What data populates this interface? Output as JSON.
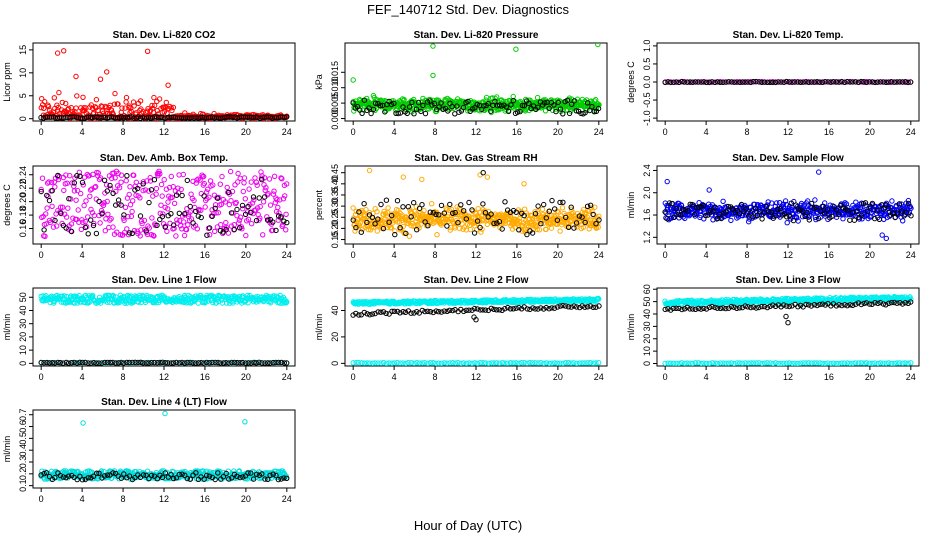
{
  "figure": {
    "title": "FEF_140712  Std. Dev. Diagnostics",
    "xlabel": "Hour of Day (UTC)"
  },
  "chart_data": [
    {
      "type": "scatter",
      "title": "Stan. Dev. Li-820 CO2",
      "ylabel": "Licor ppm",
      "xlim": [
        -0.8,
        24.8
      ],
      "ylim": [
        -0.5,
        16.5
      ],
      "xticks": [
        "0",
        "4",
        "8",
        "12",
        "16",
        "20",
        "24"
      ],
      "yticks": [
        "0",
        "5",
        "10",
        "15"
      ],
      "series": [
        {
          "color": "#ff0000",
          "kind": "co2",
          "n": 360,
          "outliers": [
            [
              2.2,
              14.8
            ],
            [
              1.6,
              14.3
            ],
            [
              10.4,
              14.7
            ],
            [
              6.4,
              10.2
            ],
            [
              3.4,
              9.2
            ],
            [
              5.8,
              8.6
            ],
            [
              12.4,
              7.3
            ]
          ]
        },
        {
          "color": "#000000",
          "kind": "zero",
          "n": 120
        }
      ]
    },
    {
      "type": "scatter",
      "title": "Stan. Dev. Li-820 Pressure",
      "ylabel": "kPa",
      "xlim": [
        -0.8,
        24.8
      ],
      "ylim": [
        -0.0008,
        0.0245
      ],
      "xticks": [
        "0",
        "4",
        "8",
        "12",
        "16",
        "20",
        "24"
      ],
      "yticks": [
        "0.000",
        "0.005",
        "0.010",
        "0.015"
      ],
      "series": [
        {
          "color": "#00cc00",
          "kind": "pres",
          "n": 520,
          "outliers": [
            [
              7.8,
              0.0235
            ],
            [
              15.9,
              0.0225
            ],
            [
              23.9,
              0.024
            ],
            [
              7.8,
              0.014
            ],
            [
              0,
              0.0125
            ]
          ]
        },
        {
          "color": "#000000",
          "kind": "presb",
          "n": 110
        }
      ]
    },
    {
      "type": "scatter",
      "title": "Stan. Dev. Li-820 Temp.",
      "ylabel": "degrees C",
      "xlim": [
        -0.8,
        24.8
      ],
      "ylim": [
        -1.08,
        1.08
      ],
      "xticks": [
        "0",
        "4",
        "8",
        "12",
        "16",
        "20",
        "24"
      ],
      "yticks": [
        "-1.0",
        "-0.5",
        "0.0",
        "0.5",
        "1.0"
      ],
      "series": [
        {
          "color": "#dd00dd",
          "kind": "flat",
          "n": 90,
          "level": 0.0
        },
        {
          "color": "#000000",
          "kind": "flat",
          "n": 90,
          "level": 0.0
        }
      ]
    },
    {
      "type": "scatter",
      "title": "Stan. Dev. Amb. Box Temp.",
      "ylabel": "degrees C",
      "xlim": [
        -0.8,
        24.8
      ],
      "ylim": [
        0.137,
        0.253
      ],
      "xticks": [
        "0",
        "4",
        "8",
        "12",
        "16",
        "20",
        "24"
      ],
      "yticks": [
        "0.16",
        "0.18",
        "0.20",
        "0.22",
        "0.24"
      ],
      "series": [
        {
          "color": "#ee00ee",
          "kind": "spread",
          "n": 380,
          "lo": 0.148,
          "hi": 0.246
        },
        {
          "color": "#000000",
          "kind": "spread",
          "n": 90,
          "lo": 0.15,
          "hi": 0.24
        }
      ]
    },
    {
      "type": "scatter",
      "title": "Stan. Dev. Gas Stream RH",
      "ylabel": "percent",
      "xlim": [
        -0.8,
        24.8
      ],
      "ylim": [
        0.13,
        0.48
      ],
      "xticks": [
        "0",
        "4",
        "8",
        "12",
        "16",
        "20",
        "24"
      ],
      "yticks": [
        "0.15",
        "0.20",
        "0.25",
        "0.30",
        "0.35",
        "0.40",
        "0.45"
      ],
      "series": [
        {
          "color": "#ffaa00",
          "kind": "rh",
          "n": 520,
          "outliers": [
            [
              1.6,
              0.46
            ],
            [
              4.9,
              0.43
            ],
            [
              6.7,
              0.42
            ],
            [
              12.4,
              0.44
            ],
            [
              13.1,
              0.43
            ],
            [
              16.7,
              0.4
            ]
          ]
        },
        {
          "color": "#000000",
          "kind": "rhb",
          "n": 90,
          "outliers": [
            [
              12.7,
              0.45
            ]
          ]
        }
      ]
    },
    {
      "type": "scatter",
      "title": "Stan. Dev. Sample Flow",
      "ylabel": "ml/min",
      "xlim": [
        -0.8,
        24.8
      ],
      "ylim": [
        1.08,
        2.48
      ],
      "xticks": [
        "0",
        "4",
        "8",
        "12",
        "16",
        "20",
        "24"
      ],
      "yticks": [
        "1.2",
        "1.6",
        "2.0",
        "2.4"
      ],
      "series": [
        {
          "color": "#0000ee",
          "kind": "flow",
          "n": 480,
          "outliers": [
            [
              0.2,
              2.2
            ],
            [
              15,
              2.37
            ],
            [
              21.6,
              1.18
            ],
            [
              21.2,
              1.24
            ],
            [
              4.3,
              2.05
            ]
          ]
        },
        {
          "color": "#000000",
          "kind": "flowb",
          "n": 110
        }
      ]
    },
    {
      "type": "scatter",
      "title": "Stan. Dev. Line 1 Flow",
      "ylabel": "ml/min",
      "xlim": [
        -0.8,
        24.8
      ],
      "ylim": [
        -2,
        57
      ],
      "xticks": [
        "0",
        "4",
        "8",
        "12",
        "16",
        "20",
        "24"
      ],
      "yticks": [
        "0",
        "10",
        "20",
        "30",
        "40",
        "50"
      ],
      "series": [
        {
          "color": "#00eeee",
          "kind": "band",
          "n": 420,
          "lo": 45.5,
          "hi": 51.5
        },
        {
          "color": "#00eeee",
          "kind": "flat",
          "n": 40,
          "level": 0.4
        },
        {
          "color": "#000000",
          "kind": "flat",
          "n": 90,
          "level": 0.5
        }
      ]
    },
    {
      "type": "scatter",
      "title": "Stan. Dev. Line 2 Flow",
      "ylabel": "ml/min",
      "xlim": [
        -0.8,
        24.8
      ],
      "ylim": [
        -2,
        57
      ],
      "xticks": [
        "0",
        "4",
        "8",
        "12",
        "16",
        "20",
        "24"
      ],
      "yticks": [
        "0",
        "20",
        "40"
      ],
      "series": [
        {
          "color": "#00eeee",
          "kind": "band2",
          "n": 420,
          "lo": 44.5,
          "hi": 48.5
        },
        {
          "color": "#00eeee",
          "kind": "flat",
          "n": 90,
          "level": 0.3
        },
        {
          "color": "#000000",
          "kind": "rise",
          "n": 90,
          "start": 37.5,
          "end": 43.5,
          "outliers": [
            [
              12,
              33
            ],
            [
              11.8,
              35
            ]
          ]
        }
      ]
    },
    {
      "type": "scatter",
      "title": "Stan. Dev. Line 3 Flow",
      "ylabel": "ml/min",
      "xlim": [
        -0.8,
        24.8
      ],
      "ylim": [
        -2,
        61
      ],
      "xticks": [
        "0",
        "4",
        "8",
        "12",
        "16",
        "20",
        "24"
      ],
      "yticks": [
        "0",
        "10",
        "20",
        "30",
        "40",
        "50",
        "60"
      ],
      "series": [
        {
          "color": "#00eeee",
          "kind": "band2",
          "n": 420,
          "lo": 47.5,
          "hi": 53.5
        },
        {
          "color": "#00eeee",
          "kind": "flat",
          "n": 90,
          "level": 0.3
        },
        {
          "color": "#000000",
          "kind": "rise",
          "n": 90,
          "start": 44,
          "end": 49,
          "outliers": [
            [
              12,
              33
            ],
            [
              11.8,
              38
            ]
          ]
        }
      ]
    },
    {
      "type": "scatter",
      "title": "Stan. Dev. Line 4 (LT) Flow",
      "ylabel": "ml/min",
      "xlim": [
        -0.8,
        24.8
      ],
      "ylim": [
        0.08,
        0.74
      ],
      "xticks": [
        "0",
        "4",
        "8",
        "12",
        "16",
        "20",
        "24"
      ],
      "yticks": [
        "0.1",
        "0.2",
        "0.3",
        "0.4",
        "0.5",
        "0.6",
        "0.7"
      ],
      "series": [
        {
          "color": "#00dddd",
          "kind": "band",
          "n": 380,
          "lo": 0.155,
          "hi": 0.225,
          "outliers": [
            [
              4.1,
              0.63
            ],
            [
              12.1,
              0.71
            ],
            [
              19.9,
              0.64
            ]
          ]
        },
        {
          "color": "#000000",
          "kind": "band",
          "n": 90,
          "lo": 0.15,
          "hi": 0.21
        }
      ]
    }
  ]
}
